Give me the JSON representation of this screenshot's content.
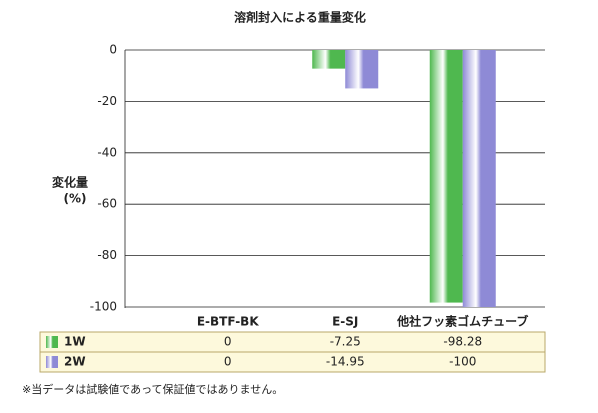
{
  "chart_data": {
    "type": "bar",
    "title": "溶剤封入による重量変化",
    "ylabel": [
      "変化量",
      "(%)"
    ],
    "categories": [
      "E-BTF-BK",
      "E-SJ",
      "他社フッ素ゴムチューブ"
    ],
    "series": [
      {
        "name": "1W",
        "color": "#4fb84f",
        "values": [
          0,
          -7.25,
          -98.28
        ]
      },
      {
        "name": "2W",
        "color": "#8e8ad6",
        "values": [
          0,
          -14.95,
          -100
        ]
      }
    ],
    "ylim": [
      -100,
      0
    ],
    "yticks": [
      0,
      -20,
      -40,
      -60,
      -80,
      -100
    ],
    "grid": true,
    "note": "※当データは試験値であって保証値ではありません。"
  }
}
